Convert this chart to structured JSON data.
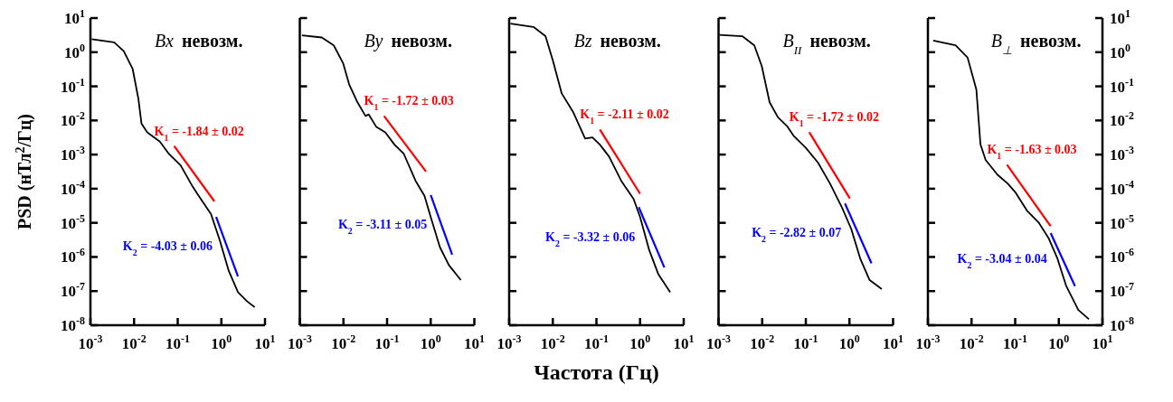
{
  "chart_data": [
    {
      "type": "line",
      "title": "Bx невозм.",
      "ylabel": "PSD (нТл$^{2}$/Гц)",
      "log": "xy",
      "xlim": [
        0.001,
        10
      ],
      "ylim": [
        1e-08,
        10
      ],
      "xticks": [
        {
          "value": 0.001,
          "label": "10$^{-3}$"
        },
        {
          "value": 0.01,
          "label": "10$^{-2}$"
        },
        {
          "value": 0.1,
          "label": "10$^{-1}$"
        },
        {
          "value": 1,
          "label": "10$^{0}$"
        },
        {
          "value": 10,
          "label": "10$^{1}$"
        }
      ],
      "yticks": [
        {
          "value": 1e-08,
          "label": "10$^{-8}$"
        },
        {
          "value": 1e-07,
          "label": "10$^{-7}$"
        },
        {
          "value": 1e-06,
          "label": "10$^{-6}$"
        },
        {
          "value": 1e-05,
          "label": "10$^{-5}$"
        },
        {
          "value": 0.0001,
          "label": "10$^{-4}$"
        },
        {
          "value": 0.001,
          "label": "10$^{-3}$"
        },
        {
          "value": 0.01,
          "label": "10$^{-2}$"
        },
        {
          "value": 0.1,
          "label": "10$^{-1}$"
        },
        {
          "value": 1,
          "label": "10$^{0}$"
        },
        {
          "value": 10,
          "label": "10$^{1}$"
        }
      ],
      "series": [
        {
          "color": "#000000",
          "x": [
            0.00107,
            0.0035,
            0.0058,
            0.0093,
            0.0126,
            0.0148,
            0.02,
            0.039,
            0.062,
            0.117,
            0.22,
            0.3,
            0.58,
            0.93,
            1.48,
            2.4,
            3.9,
            5.8
          ],
          "values": [
            2.4,
            1.95,
            1.07,
            0.32,
            0.042,
            0.0081,
            0.0045,
            0.0024,
            0.00107,
            0.00048,
            0.000115,
            6.3e-05,
            1.8e-05,
            2.95e-06,
            3.9e-07,
            9.3e-08,
            5e-08,
            3.4e-08
          ]
        },
        {
          "type": "line",
          "color": "#ff0000",
          "x": [
            0.083,
            0.69
          ],
          "values": [
            0.00178,
            4.3e-05
          ]
        },
        {
          "type": "line",
          "color": "#0000ff",
          "x": [
            0.76,
            2.4
          ],
          "values": [
            1.48e-05,
            2.7e-07
          ]
        }
      ],
      "annotations": [
        "K$_{1}$ = -1.84 ± 0.02",
        "K$_{2}$ = -4.03 ± 0.06"
      ]
    },
    {
      "type": "line",
      "title": "By невозм.",
      "log": "xy",
      "xlim": [
        0.001,
        10
      ],
      "ylim": [
        1e-08,
        10
      ],
      "tick_labels": "x",
      "xticks": [
        {
          "value": 0.001,
          "label": "10$^{-3}$"
        },
        {
          "value": 0.01,
          "label": "10$^{-2}$"
        },
        {
          "value": 0.1,
          "label": "10$^{-1}$"
        },
        {
          "value": 1,
          "label": "10$^{0}$"
        },
        {
          "value": 10,
          "label": "10$^{1}$"
        }
      ],
      "yticks": [
        1e-08,
        1e-07,
        1e-06,
        1e-05,
        0.0001,
        0.001,
        0.01,
        0.1,
        1,
        10
      ],
      "series": [
        {
          "color": "#000000",
          "x": [
            0.00112,
            0.0032,
            0.006,
            0.0098,
            0.0135,
            0.021,
            0.032,
            0.038,
            0.056,
            0.091,
            0.148,
            0.24,
            0.45,
            0.72,
            1,
            1.62,
            2.6,
            4.9
          ],
          "values": [
            3.1,
            2.7,
            1.58,
            0.48,
            0.115,
            0.034,
            0.0135,
            0.015,
            0.0066,
            0.0045,
            0.00195,
            0.00107,
            0.00017,
            6.2e-05,
            1.48e-05,
            1.95e-06,
            5.8e-07,
            2.1e-07
          ]
        },
        {
          "type": "line",
          "color": "#ff0000",
          "x": [
            0.085,
            0.78
          ],
          "values": [
            0.0135,
            0.00032
          ]
        },
        {
          "type": "line",
          "color": "#0000ff",
          "x": [
            1,
            3.1
          ],
          "values": [
            6.5e-05,
            1.17e-06
          ]
        }
      ],
      "annotations": [
        "K$_{1}$ = -1.72 ± 0.03",
        "K$_{2}$ = -3.11 ± 0.05"
      ]
    },
    {
      "type": "line",
      "title": "Bz невозм.",
      "xlabel": "Частота (Гц)",
      "log": "xy",
      "xlim": [
        0.001,
        10
      ],
      "ylim": [
        1e-08,
        10
      ],
      "tick_labels": "x",
      "xticks": [
        {
          "value": 0.001,
          "label": "10$^{-3}$"
        },
        {
          "value": 0.01,
          "label": "10$^{-2}$"
        },
        {
          "value": 0.1,
          "label": "10$^{-1}$"
        },
        {
          "value": 1,
          "label": "10$^{0}$"
        },
        {
          "value": 10,
          "label": "10$^{1}$"
        }
      ],
      "yticks": [
        1e-08,
        1e-07,
        1e-06,
        1e-05,
        0.0001,
        0.001,
        0.01,
        0.1,
        1,
        10
      ],
      "series": [
        {
          "color": "#000000",
          "x": [
            0.00107,
            0.0036,
            0.0068,
            0.01,
            0.016,
            0.029,
            0.055,
            0.081,
            0.12,
            0.195,
            0.37,
            0.71,
            1,
            1.62,
            2.6,
            4.9
          ],
          "values": [
            6.9,
            5.5,
            2.95,
            0.58,
            0.062,
            0.018,
            0.00295,
            0.0032,
            0.00195,
            0.00087,
            0.00017,
            5e-05,
            1.48e-05,
            1.58e-06,
            3.2e-07,
            9.3e-08
          ]
        },
        {
          "type": "line",
          "color": "#ff0000",
          "x": [
            0.12,
            1
          ],
          "values": [
            0.0054,
            7.1e-05
          ]
        },
        {
          "type": "line",
          "color": "#0000ff",
          "x": [
            0.93,
            3.6
          ],
          "values": [
            2.9e-05,
            4.9e-07
          ]
        }
      ],
      "annotations": [
        "K$_{1}$ = -2.11 ± 0.02",
        "K$_{2}$ = -3.32 ± 0.06"
      ]
    },
    {
      "type": "line",
      "title": "B$_{II}$ невозм.",
      "log": "xy",
      "xlim": [
        0.001,
        10
      ],
      "ylim": [
        1e-08,
        10
      ],
      "tick_labels": "x",
      "xticks": [
        {
          "value": 0.001,
          "label": "10$^{-3}$"
        },
        {
          "value": 0.01,
          "label": "10$^{-2}$"
        },
        {
          "value": 0.1,
          "label": "10$^{-1}$"
        },
        {
          "value": 1,
          "label": "10$^{0}$"
        },
        {
          "value": 10,
          "label": "10$^{1}$"
        }
      ],
      "yticks": [
        1e-08,
        1e-07,
        1e-06,
        1e-05,
        0.0001,
        0.001,
        0.01,
        0.1,
        1,
        10
      ],
      "series": [
        {
          "color": "#000000",
          "x": [
            0.00105,
            0.0035,
            0.0066,
            0.0098,
            0.0148,
            0.023,
            0.038,
            0.052,
            0.1,
            0.19,
            0.36,
            0.68,
            1.1,
            1.78,
            2.9,
            5.5
          ],
          "values": [
            3.2,
            2.95,
            1.58,
            0.39,
            0.034,
            0.0123,
            0.0066,
            0.0036,
            0.00158,
            0.00058,
            0.00014,
            2.75e-05,
            6.6e-06,
            8.7e-07,
            2.1e-07,
            1.15e-07
          ]
        },
        {
          "type": "line",
          "color": "#ff0000",
          "x": [
            0.12,
            1.02
          ],
          "values": [
            0.0045,
            5.2e-05
          ]
        },
        {
          "type": "line",
          "color": "#0000ff",
          "x": [
            0.79,
            3.2
          ],
          "values": [
            3.7e-05,
            6.5e-07
          ]
        }
      ],
      "annotations": [
        "K$_{1}$ = -1.72 ± 0.02",
        "K$_{2}$ = -2.82 ± 0.07"
      ]
    },
    {
      "type": "line",
      "title": "B$_{⊥}$ невозм.",
      "log": "xy",
      "xlim": [
        0.001,
        10
      ],
      "ylim": [
        1e-08,
        10
      ],
      "xticks": [
        {
          "value": 0.001,
          "label": "10$^{-3}$"
        },
        {
          "value": 0.01,
          "label": "10$^{-2}$"
        },
        {
          "value": 0.1,
          "label": "10$^{-1}$"
        },
        {
          "value": 1,
          "label": "10$^{0}$"
        },
        {
          "value": 10,
          "label": "10$^{1}$"
        }
      ],
      "yticks": [
        {
          "value": 1e-08,
          "label": "10$^{-8}$"
        },
        {
          "value": 1e-07,
          "label": "10$^{-7}$"
        },
        {
          "value": 1e-06,
          "label": "10$^{-6}$"
        },
        {
          "value": 1e-05,
          "label": "10$^{-5}$"
        },
        {
          "value": 0.0001,
          "label": "10$^{-4}$"
        },
        {
          "value": 0.001,
          "label": "10$^{-3}$"
        },
        {
          "value": 0.01,
          "label": "10$^{-2}$"
        },
        {
          "value": 0.1,
          "label": "10$^{-1}$"
        },
        {
          "value": 1,
          "label": "10$^{0}$"
        },
        {
          "value": 10,
          "label": "10$^{1}$"
        }
      ],
      "series": [
        {
          "color": "#000000",
          "x": [
            0.00132,
            0.0043,
            0.0081,
            0.0129,
            0.016,
            0.021,
            0.039,
            0.068,
            0.1,
            0.19,
            0.35,
            0.58,
            0.93,
            1.48,
            2.8,
            4.9
          ],
          "values": [
            2.2,
            1.6,
            0.7,
            0.08,
            0.002,
            0.0007,
            0.00026,
            0.00014,
            8e-05,
            2.2e-05,
            1e-05,
            3.6e-06,
            9e-07,
            1.4e-07,
            2.8e-08,
            1.5e-08
          ]
        },
        {
          "type": "line",
          "color": "#ff0000",
          "x": [
            0.065,
            0.65
          ],
          "values": [
            0.0005,
            8e-06
          ]
        },
        {
          "type": "line",
          "color": "#0000ff",
          "x": [
            0.65,
            2.35
          ],
          "values": [
            5e-06,
            1.4e-07
          ]
        }
      ],
      "annotations": [
        "K$_{1}$ = -1.63 ± 0.03",
        "K$_{2}$ = -3.04 ± 0.04"
      ]
    }
  ]
}
